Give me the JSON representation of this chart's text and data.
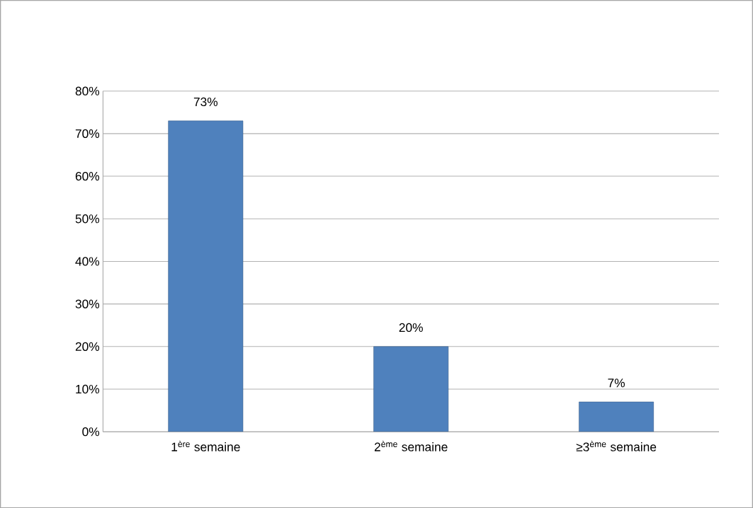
{
  "chart_data": {
    "type": "bar",
    "categories": [
      "1$^{ère}$ semaine",
      "2$^{ème}$ semaine",
      "≥3$^{ème}$ semaine"
    ],
    "values": [
      73,
      20,
      7
    ],
    "value_labels": [
      "73%",
      "20%",
      "7%"
    ],
    "color": "#4f81bd",
    "ylim": [
      0,
      80
    ],
    "yticks": [
      {
        "value": 0,
        "label": "0%"
      },
      {
        "value": 10,
        "label": "10%"
      },
      {
        "value": 20,
        "label": "20%"
      },
      {
        "value": 30,
        "label": "30%"
      },
      {
        "value": 40,
        "label": "40%"
      },
      {
        "value": 50,
        "label": "50%"
      },
      {
        "value": 60,
        "label": "60%"
      },
      {
        "value": 70,
        "label": "70%"
      },
      {
        "value": 80,
        "label": "80%"
      }
    ],
    "grid": "y"
  }
}
